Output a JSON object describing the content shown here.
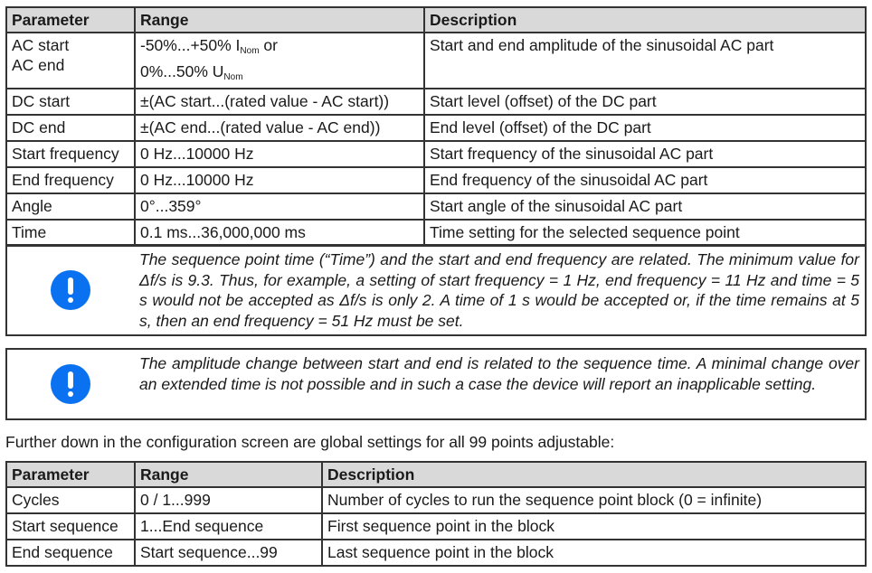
{
  "table1": {
    "headers": [
      "Parameter",
      "Range",
      "Description"
    ],
    "ac": {
      "param1": "AC start",
      "param2": "AC end",
      "range1": "-50%...+50% I",
      "sub1": "Nom",
      "range1b": " or",
      "range2": "0%...50% U",
      "sub2": "Nom",
      "desc": "Start and end amplitude of the sinusoidal AC part"
    },
    "rows": [
      [
        "DC start",
        "±(AC start...(rated value - AC start))",
        "Start level (offset) of the DC part"
      ],
      [
        "DC end",
        "±(AC end...(rated value - AC end))",
        "End level (offset) of the DC part"
      ],
      [
        "Start frequency",
        "0 Hz...10000 Hz",
        "Start frequency of the sinusoidal AC part"
      ],
      [
        "End frequency",
        "0 Hz...10000 Hz",
        "End frequency of the sinusoidal AC part"
      ],
      [
        "Angle",
        "0°...359°",
        "Start angle of the sinusoidal AC part"
      ],
      [
        "Time",
        "0.1 ms...36,000,000 ms",
        "Time setting for the selected sequence point"
      ]
    ]
  },
  "notes": [
    {
      "icon": "exclamation-circle-icon",
      "color": "#0a72f0",
      "text": "The sequence point time (“Time”) and the start and end frequency are related. The minimum value for Δf/s is 9.3. Thus, for example, a setting of start frequency = 1 Hz, end frequency = 11 Hz and time = 5 s would not be accepted as Δf/s is only 2. A time of 1 s would be accepted or, if the time remains at 5 s, then an end frequency = 51 Hz must be set."
    },
    {
      "icon": "exclamation-circle-icon",
      "color": "#0a72f0",
      "text": "The amplitude change between start and end is related to the sequence time. A minimal change over an extended time is not possible and in such a case the device will report an inapplicable setting."
    }
  ],
  "paragraph": "Further down in the configuration screen are global settings for all 99 points adjustable:",
  "table2": {
    "headers": [
      "Parameter",
      "Range",
      "Description"
    ],
    "rows": [
      [
        "Cycles",
        "0 / 1...999",
        "Number of cycles to run the sequence point block (0 = infinite)"
      ],
      [
        "Start sequence",
        "1...End sequence",
        "First sequence point in the block"
      ],
      [
        "End sequence",
        "Start sequence...99",
        "Last sequence point in the block"
      ]
    ]
  }
}
